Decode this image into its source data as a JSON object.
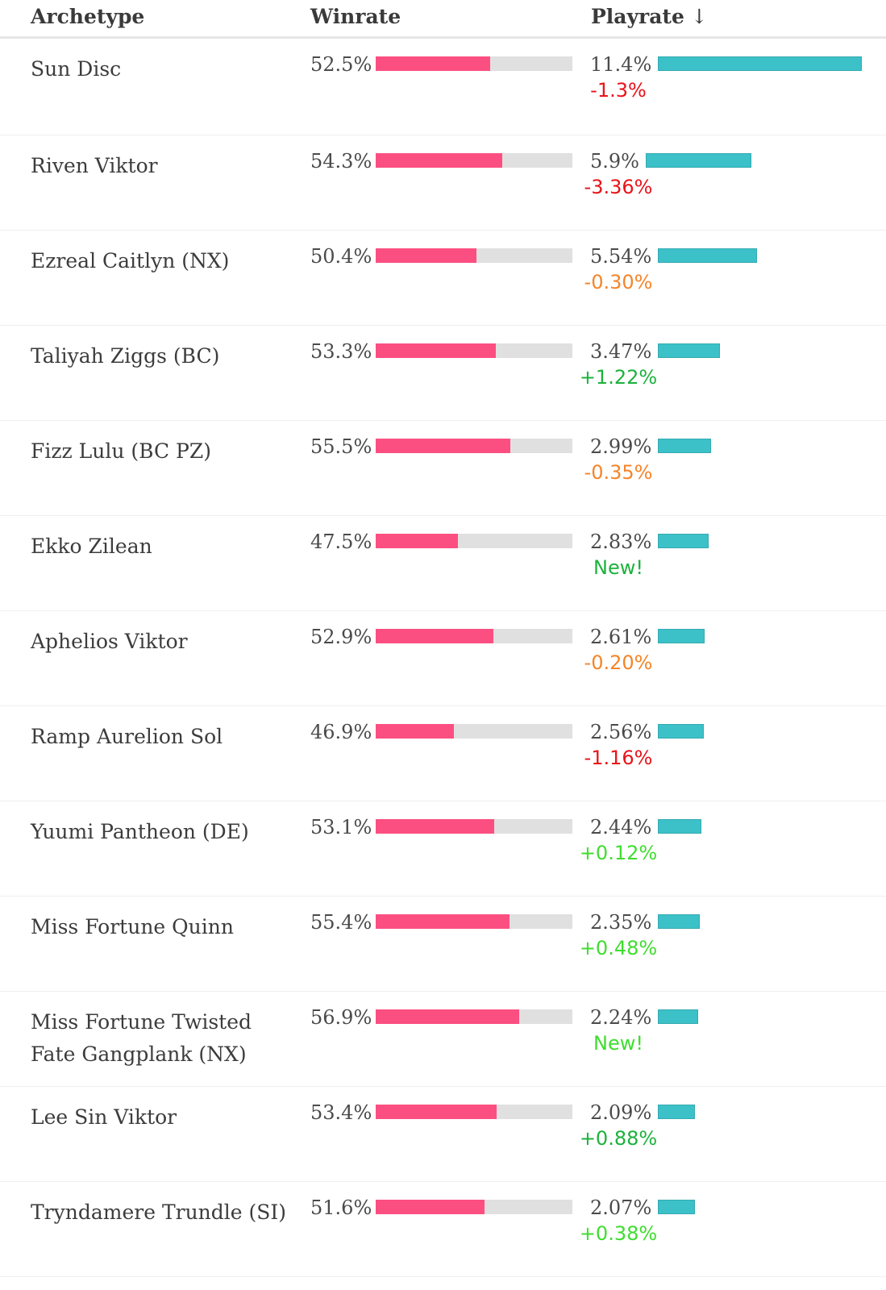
{
  "header": {
    "archetype": "Archetype",
    "winrate": "Winrate",
    "playrate": "Playrate",
    "sort_arrow": "↓"
  },
  "colors": {
    "winrate_fill": "#fc4f81",
    "winrate_track": "#e0e0e0",
    "playrate_fill": "#3cc1c8",
    "delta_red": "#e8141a",
    "delta_orange": "#f5852a",
    "delta_green": "#1db23c",
    "delta_light_green": "#3fdd2f"
  },
  "rows": [
    {
      "archetype": "Sun Disc",
      "winrate": "52.5%",
      "winrate_value": 52.5,
      "playrate": "11.4%",
      "playrate_value": 11.4,
      "delta": "-1.3%",
      "delta_color": "#e8141a"
    },
    {
      "archetype": "Riven Viktor",
      "winrate": "54.3%",
      "winrate_value": 54.3,
      "playrate": "5.9%",
      "playrate_value": 5.9,
      "delta": "-3.36%",
      "delta_color": "#e8141a"
    },
    {
      "archetype": "Ezreal Caitlyn (NX)",
      "winrate": "50.4%",
      "winrate_value": 50.4,
      "playrate": "5.54%",
      "playrate_value": 5.54,
      "delta": "-0.30%",
      "delta_color": "#f5852a"
    },
    {
      "archetype": "Taliyah Ziggs (BC)",
      "winrate": "53.3%",
      "winrate_value": 53.3,
      "playrate": "3.47%",
      "playrate_value": 3.47,
      "delta": "+1.22%",
      "delta_color": "#1db23c"
    },
    {
      "archetype": "Fizz Lulu (BC PZ)",
      "winrate": "55.5%",
      "winrate_value": 55.5,
      "playrate": "2.99%",
      "playrate_value": 2.99,
      "delta": "-0.35%",
      "delta_color": "#f5852a"
    },
    {
      "archetype": "Ekko Zilean",
      "winrate": "47.5%",
      "winrate_value": 47.5,
      "playrate": "2.83%",
      "playrate_value": 2.83,
      "delta": "New!",
      "delta_color": "#1db23c"
    },
    {
      "archetype": "Aphelios Viktor",
      "winrate": "52.9%",
      "winrate_value": 52.9,
      "playrate": "2.61%",
      "playrate_value": 2.61,
      "delta": "-0.20%",
      "delta_color": "#f5852a"
    },
    {
      "archetype": "Ramp Aurelion Sol",
      "winrate": "46.9%",
      "winrate_value": 46.9,
      "playrate": "2.56%",
      "playrate_value": 2.56,
      "delta": "-1.16%",
      "delta_color": "#e8141a"
    },
    {
      "archetype": "Yuumi Pantheon (DE)",
      "winrate": "53.1%",
      "winrate_value": 53.1,
      "playrate": "2.44%",
      "playrate_value": 2.44,
      "delta": "+0.12%",
      "delta_color": "#3fdd2f"
    },
    {
      "archetype": "Miss Fortune Quinn",
      "winrate": "55.4%",
      "winrate_value": 55.4,
      "playrate": "2.35%",
      "playrate_value": 2.35,
      "delta": "+0.48%",
      "delta_color": "#3fdd2f"
    },
    {
      "archetype": "Miss Fortune Twisted Fate Gangplank (NX)",
      "winrate": "56.9%",
      "winrate_value": 56.9,
      "playrate": "2.24%",
      "playrate_value": 2.24,
      "delta": "New!",
      "delta_color": "#3fdd2f"
    },
    {
      "archetype": "Lee Sin Viktor",
      "winrate": "53.4%",
      "winrate_value": 53.4,
      "playrate": "2.09%",
      "playrate_value": 2.09,
      "delta": "+0.88%",
      "delta_color": "#1db23c"
    },
    {
      "archetype": "Tryndamere Trundle (SI)",
      "winrate": "51.6%",
      "winrate_value": 51.6,
      "playrate": "2.07%",
      "playrate_value": 2.07,
      "delta": "+0.38%",
      "delta_color": "#3fdd2f"
    }
  ]
}
